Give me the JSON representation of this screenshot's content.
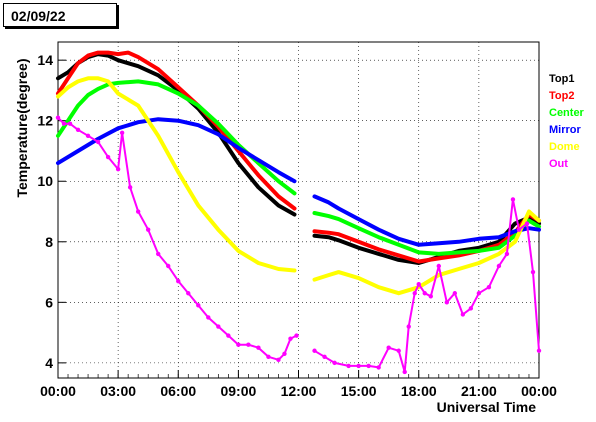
{
  "date_label": "02/09/22",
  "chart_data": {
    "type": "line",
    "xlabel": "Universal Time",
    "ylabel": "Temperature(degree)",
    "xticks": [
      "00:00",
      "03:00",
      "06:00",
      "09:00",
      "12:00",
      "15:00",
      "18:00",
      "21:00",
      "00:00"
    ],
    "yticks": [
      4,
      6,
      8,
      10,
      12,
      14
    ],
    "xlim": [
      0,
      24
    ],
    "ylim": [
      3.5,
      14.6
    ],
    "grid": true,
    "legend_position": "right",
    "series": [
      {
        "name": "Top1",
        "color": "#000000",
        "x": [
          0,
          0.5,
          1.0,
          1.5,
          2.0,
          2.5,
          3.0,
          3.5,
          4.0,
          5.0,
          6.0,
          7.0,
          8.0,
          9.0,
          10.0,
          11.0,
          11.8
        ],
        "y": [
          13.4,
          13.6,
          13.9,
          14.1,
          14.2,
          14.15,
          14.0,
          13.9,
          13.8,
          13.5,
          13.0,
          12.4,
          11.6,
          10.6,
          9.8,
          9.2,
          8.9
        ],
        "x2": [
          12.8,
          13.5,
          14.0,
          15.0,
          16.0,
          17.0,
          18.0,
          19.0,
          20.0,
          21.0,
          22.0,
          22.8,
          23.5,
          24.0
        ],
        "y2": [
          8.2,
          8.15,
          8.05,
          7.8,
          7.6,
          7.4,
          7.3,
          7.5,
          7.7,
          7.8,
          8.0,
          8.6,
          8.8,
          8.6
        ]
      },
      {
        "name": "Top2",
        "color": "#ff0000",
        "x": [
          0,
          0.5,
          1.0,
          1.5,
          2.0,
          2.5,
          3.0,
          3.5,
          4.0,
          5.0,
          6.0,
          7.0,
          8.0,
          9.0,
          10.0,
          11.0,
          11.8
        ],
        "y": [
          12.9,
          13.4,
          13.9,
          14.15,
          14.25,
          14.25,
          14.2,
          14.25,
          14.1,
          13.7,
          13.1,
          12.5,
          11.8,
          11.0,
          10.2,
          9.5,
          9.1
        ],
        "x2": [
          12.8,
          13.5,
          14.0,
          15.0,
          16.0,
          17.0,
          18.0,
          19.0,
          20.0,
          21.0,
          22.0,
          22.8,
          23.5,
          24.0
        ],
        "y2": [
          8.35,
          8.3,
          8.25,
          8.0,
          7.75,
          7.55,
          7.35,
          7.45,
          7.55,
          7.7,
          7.9,
          8.3,
          8.9,
          8.7
        ]
      },
      {
        "name": "Center",
        "color": "#00ff00",
        "x": [
          0,
          0.5,
          1.0,
          1.5,
          2.0,
          2.5,
          3.0,
          4.0,
          5.0,
          6.0,
          7.0,
          8.0,
          9.0,
          10.0,
          11.0,
          11.8
        ],
        "y": [
          11.5,
          12.0,
          12.5,
          12.85,
          13.05,
          13.2,
          13.25,
          13.3,
          13.2,
          12.9,
          12.5,
          11.9,
          11.2,
          10.6,
          10.0,
          9.6
        ],
        "x2": [
          12.8,
          13.5,
          14.0,
          15.0,
          16.0,
          17.0,
          18.0,
          19.0,
          20.0,
          21.0,
          22.0,
          22.8,
          23.5,
          24.0
        ],
        "y2": [
          8.95,
          8.85,
          8.75,
          8.45,
          8.15,
          7.9,
          7.65,
          7.6,
          7.65,
          7.7,
          7.8,
          8.2,
          8.7,
          8.5
        ]
      },
      {
        "name": "Mirror",
        "color": "#0000ff",
        "x": [
          0,
          1.0,
          2.0,
          3.0,
          4.0,
          5.0,
          6.0,
          7.0,
          8.0,
          9.0,
          10.0,
          11.0,
          11.8
        ],
        "y": [
          10.6,
          11.0,
          11.4,
          11.75,
          11.95,
          12.05,
          12.0,
          11.85,
          11.55,
          11.1,
          10.7,
          10.3,
          10.0
        ],
        "x2": [
          12.8,
          13.5,
          14.0,
          15.0,
          16.0,
          17.0,
          18.0,
          19.0,
          20.0,
          21.0,
          22.0,
          22.8,
          23.5,
          24.0
        ],
        "y2": [
          9.5,
          9.3,
          9.1,
          8.75,
          8.4,
          8.1,
          7.9,
          7.95,
          8.0,
          8.1,
          8.15,
          8.35,
          8.45,
          8.4
        ]
      },
      {
        "name": "Dome",
        "color": "#ffff00",
        "x": [
          0,
          0.5,
          1.0,
          1.5,
          2.0,
          2.5,
          3.0,
          4.0,
          5.0,
          6.0,
          7.0,
          8.0,
          9.0,
          10.0,
          11.0,
          11.8
        ],
        "y": [
          12.8,
          13.1,
          13.3,
          13.4,
          13.4,
          13.3,
          12.9,
          12.5,
          11.5,
          10.3,
          9.2,
          8.4,
          7.7,
          7.3,
          7.1,
          7.05
        ],
        "x2": [
          12.8,
          13.5,
          14.0,
          15.0,
          16.0,
          17.0,
          18.0,
          19.0,
          20.0,
          21.0,
          22.0,
          22.8,
          23.5,
          24.0
        ],
        "y2": [
          6.75,
          6.9,
          7.0,
          6.8,
          6.5,
          6.3,
          6.5,
          6.9,
          7.1,
          7.3,
          7.6,
          8.0,
          9.0,
          8.7
        ]
      },
      {
        "name": "Out",
        "color": "#ff00ff",
        "x": [
          0,
          0.3,
          0.6,
          1.0,
          1.5,
          2.0,
          2.5,
          3.0,
          3.2,
          3.6,
          4.0,
          4.5,
          5.0,
          5.5,
          6.0,
          6.5,
          7.0,
          7.5,
          8.0,
          8.5,
          9.0,
          9.5,
          10.0,
          10.5,
          11.0,
          11.3,
          11.6,
          11.9
        ],
        "y": [
          12.1,
          11.9,
          11.9,
          11.7,
          11.5,
          11.3,
          10.8,
          10.4,
          11.6,
          9.8,
          9.0,
          8.4,
          7.6,
          7.2,
          6.7,
          6.3,
          5.9,
          5.5,
          5.2,
          4.9,
          4.6,
          4.6,
          4.5,
          4.2,
          4.1,
          4.3,
          4.8,
          4.9
        ],
        "x2": [
          12.8,
          13.3,
          13.8,
          14.5,
          15.0,
          15.5,
          16.0,
          16.5,
          17.0,
          17.3,
          17.5,
          17.8,
          18.0,
          18.3,
          18.6,
          19.0,
          19.4,
          19.8,
          20.2,
          20.6,
          21.0,
          21.5,
          22.0,
          22.4,
          22.7,
          23.0,
          23.4,
          23.7,
          24.0
        ],
        "y2": [
          4.4,
          4.2,
          4.0,
          3.9,
          3.9,
          3.9,
          3.85,
          4.5,
          4.4,
          3.7,
          5.2,
          6.3,
          6.6,
          6.3,
          6.2,
          7.2,
          6.0,
          6.3,
          5.6,
          5.8,
          6.3,
          6.5,
          7.2,
          7.6,
          9.4,
          8.4,
          8.6,
          7.0,
          4.4
        ]
      }
    ]
  }
}
